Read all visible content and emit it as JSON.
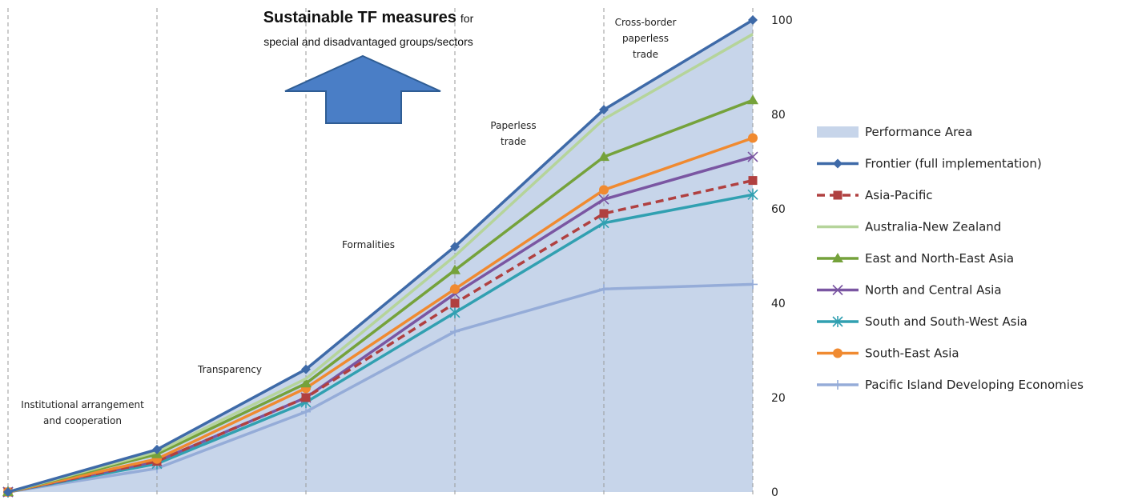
{
  "chart_data": {
    "type": "area",
    "title": "Sustainable TF measures",
    "title_suffix": "for",
    "subtitle": "special and disadvantaged groups/sectors",
    "x": [
      0,
      1,
      2,
      3,
      4,
      5
    ],
    "ylim": [
      0,
      100
    ],
    "y_ticks": [
      "0",
      "20",
      "40",
      "60",
      "80",
      "100"
    ],
    "y_axis_position": "right",
    "grid": "vertical dashed lines at stage boundaries",
    "legend_position": "right",
    "stage_labels": [
      {
        "lines": [
          "Institutional arrangement",
          "and cooperation"
        ]
      },
      {
        "lines": [
          "Transparency"
        ]
      },
      {
        "lines": [
          "Formalities"
        ]
      },
      {
        "lines": [
          "Paperless",
          "trade"
        ]
      },
      {
        "lines": [
          "Cross-border",
          "paperless",
          "trade"
        ]
      }
    ],
    "area": {
      "name": "Performance Area",
      "color": "#c7d5ea"
    },
    "series": [
      {
        "name": "Pacific Island Developing Economies",
        "values": [
          0,
          5,
          17,
          34,
          43,
          44
        ],
        "color": "#95acd8",
        "marker": "plus",
        "dash": false
      },
      {
        "name": "South and South-West Asia",
        "values": [
          0,
          6,
          19,
          38,
          57,
          63
        ],
        "color": "#31a0b1",
        "marker": "star",
        "dash": false
      },
      {
        "name": "North and Central Asia",
        "values": [
          0,
          6.5,
          20,
          42,
          62,
          71
        ],
        "color": "#7a56a2",
        "marker": "x",
        "dash": false
      },
      {
        "name": "Asia-Pacific",
        "values": [
          0,
          6.5,
          20,
          40,
          59,
          66
        ],
        "color": "#b04040",
        "marker": "square",
        "dash": true
      },
      {
        "name": "South-East Asia",
        "values": [
          0,
          7,
          22,
          43,
          64,
          75
        ],
        "color": "#f08a30",
        "marker": "circle",
        "dash": false
      },
      {
        "name": "East and North-East Asia",
        "values": [
          0,
          8,
          23,
          47,
          71,
          83
        ],
        "color": "#75a23b",
        "marker": "triangle",
        "dash": false
      },
      {
        "name": "Australia-New Zealand",
        "values": [
          0,
          8.5,
          24,
          50,
          79,
          97
        ],
        "color": "#b5d49a",
        "marker": "none",
        "dash": false
      },
      {
        "name": "Frontier (full implementation)",
        "values": [
          0,
          9,
          26,
          52,
          81,
          100
        ],
        "color": "#3e6aa8",
        "marker": "diamond",
        "dash": false
      }
    ],
    "legend_order": [
      "Performance Area",
      "Frontier (full implementation)",
      "Asia-Pacific",
      "Australia-New Zealand",
      "East and North-East Asia",
      "North and Central Asia",
      "South and South-West Asia",
      "South-East Asia",
      "Pacific Island Developing Economies"
    ]
  }
}
